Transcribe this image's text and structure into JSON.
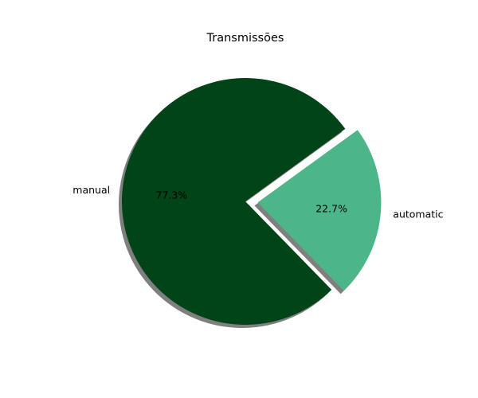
{
  "chart_data": {
    "type": "pie",
    "title": "Transmissões",
    "categories": [
      "manual",
      "automatic"
    ],
    "values": [
      77.3,
      22.7
    ],
    "percent_labels": [
      "77.3%",
      "22.7%"
    ],
    "colors": [
      "#004418",
      "#4db688"
    ],
    "exploded": [
      false,
      true
    ],
    "shadow": true,
    "legend": "none"
  }
}
